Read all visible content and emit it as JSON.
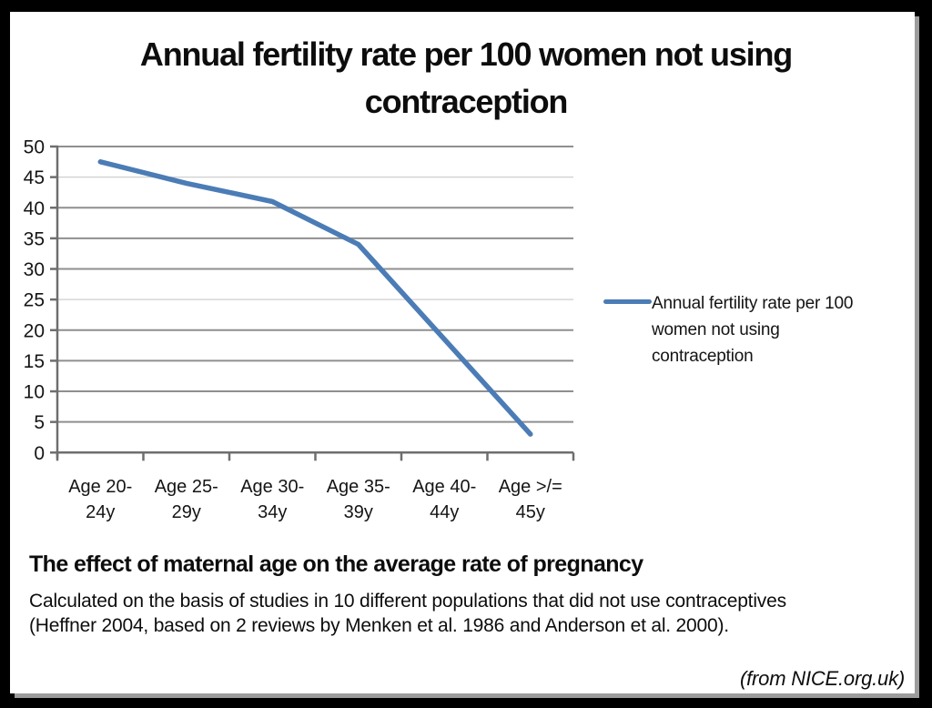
{
  "chart_data": {
    "type": "line",
    "title": "Annual fertility rate per 100 women not using contraception",
    "categories": [
      "Age 20-24y",
      "Age 25-29y",
      "Age 30-34y",
      "Age 35-39y",
      "Age 40-44y",
      "Age >/= 45y"
    ],
    "category_label_lines": [
      [
        "Age 20-",
        "24y"
      ],
      [
        "Age 25-",
        "29y"
      ],
      [
        "Age 30-",
        "34y"
      ],
      [
        "Age 35-",
        "39y"
      ],
      [
        "Age 40-",
        "44y"
      ],
      [
        "Age >/=",
        "45y"
      ]
    ],
    "series": [
      {
        "name": "Annual fertility rate per 100 women not using contraception",
        "values": [
          47.5,
          44,
          41,
          34,
          18.5,
          3
        ],
        "color": "#4b7cb6"
      }
    ],
    "xlabel": "",
    "ylabel": "",
    "ylim": [
      0,
      50
    ],
    "yticks": [
      0,
      5,
      10,
      15,
      20,
      25,
      30,
      35,
      40,
      45,
      50
    ],
    "light_gridlines": [
      45,
      25
    ],
    "grid": true,
    "legend_position": "right",
    "legend_lines": [
      "Annual fertility rate per 100",
      "women not using",
      "contraception"
    ]
  },
  "caption": {
    "heading": "The effect of maternal age on the average rate of pregnancy",
    "body_lines": [
      "Calculated on the basis of studies in 10 different populations that did not use contraceptives",
      "(Heffner 2004, based on 2 reviews by Menken et al. 1986 and Anderson et al. 2000)."
    ],
    "source_note": "(from NICE.org.uk)"
  },
  "colors": {
    "line": "#4b7cb6",
    "gridline": "#8f8f8f",
    "gridline_light": "#cfcfcf",
    "axis": "#6e6e6e",
    "text": "#151515",
    "frame": "#000000",
    "background": "#ffffff",
    "shadow": "#9c9c9c"
  }
}
